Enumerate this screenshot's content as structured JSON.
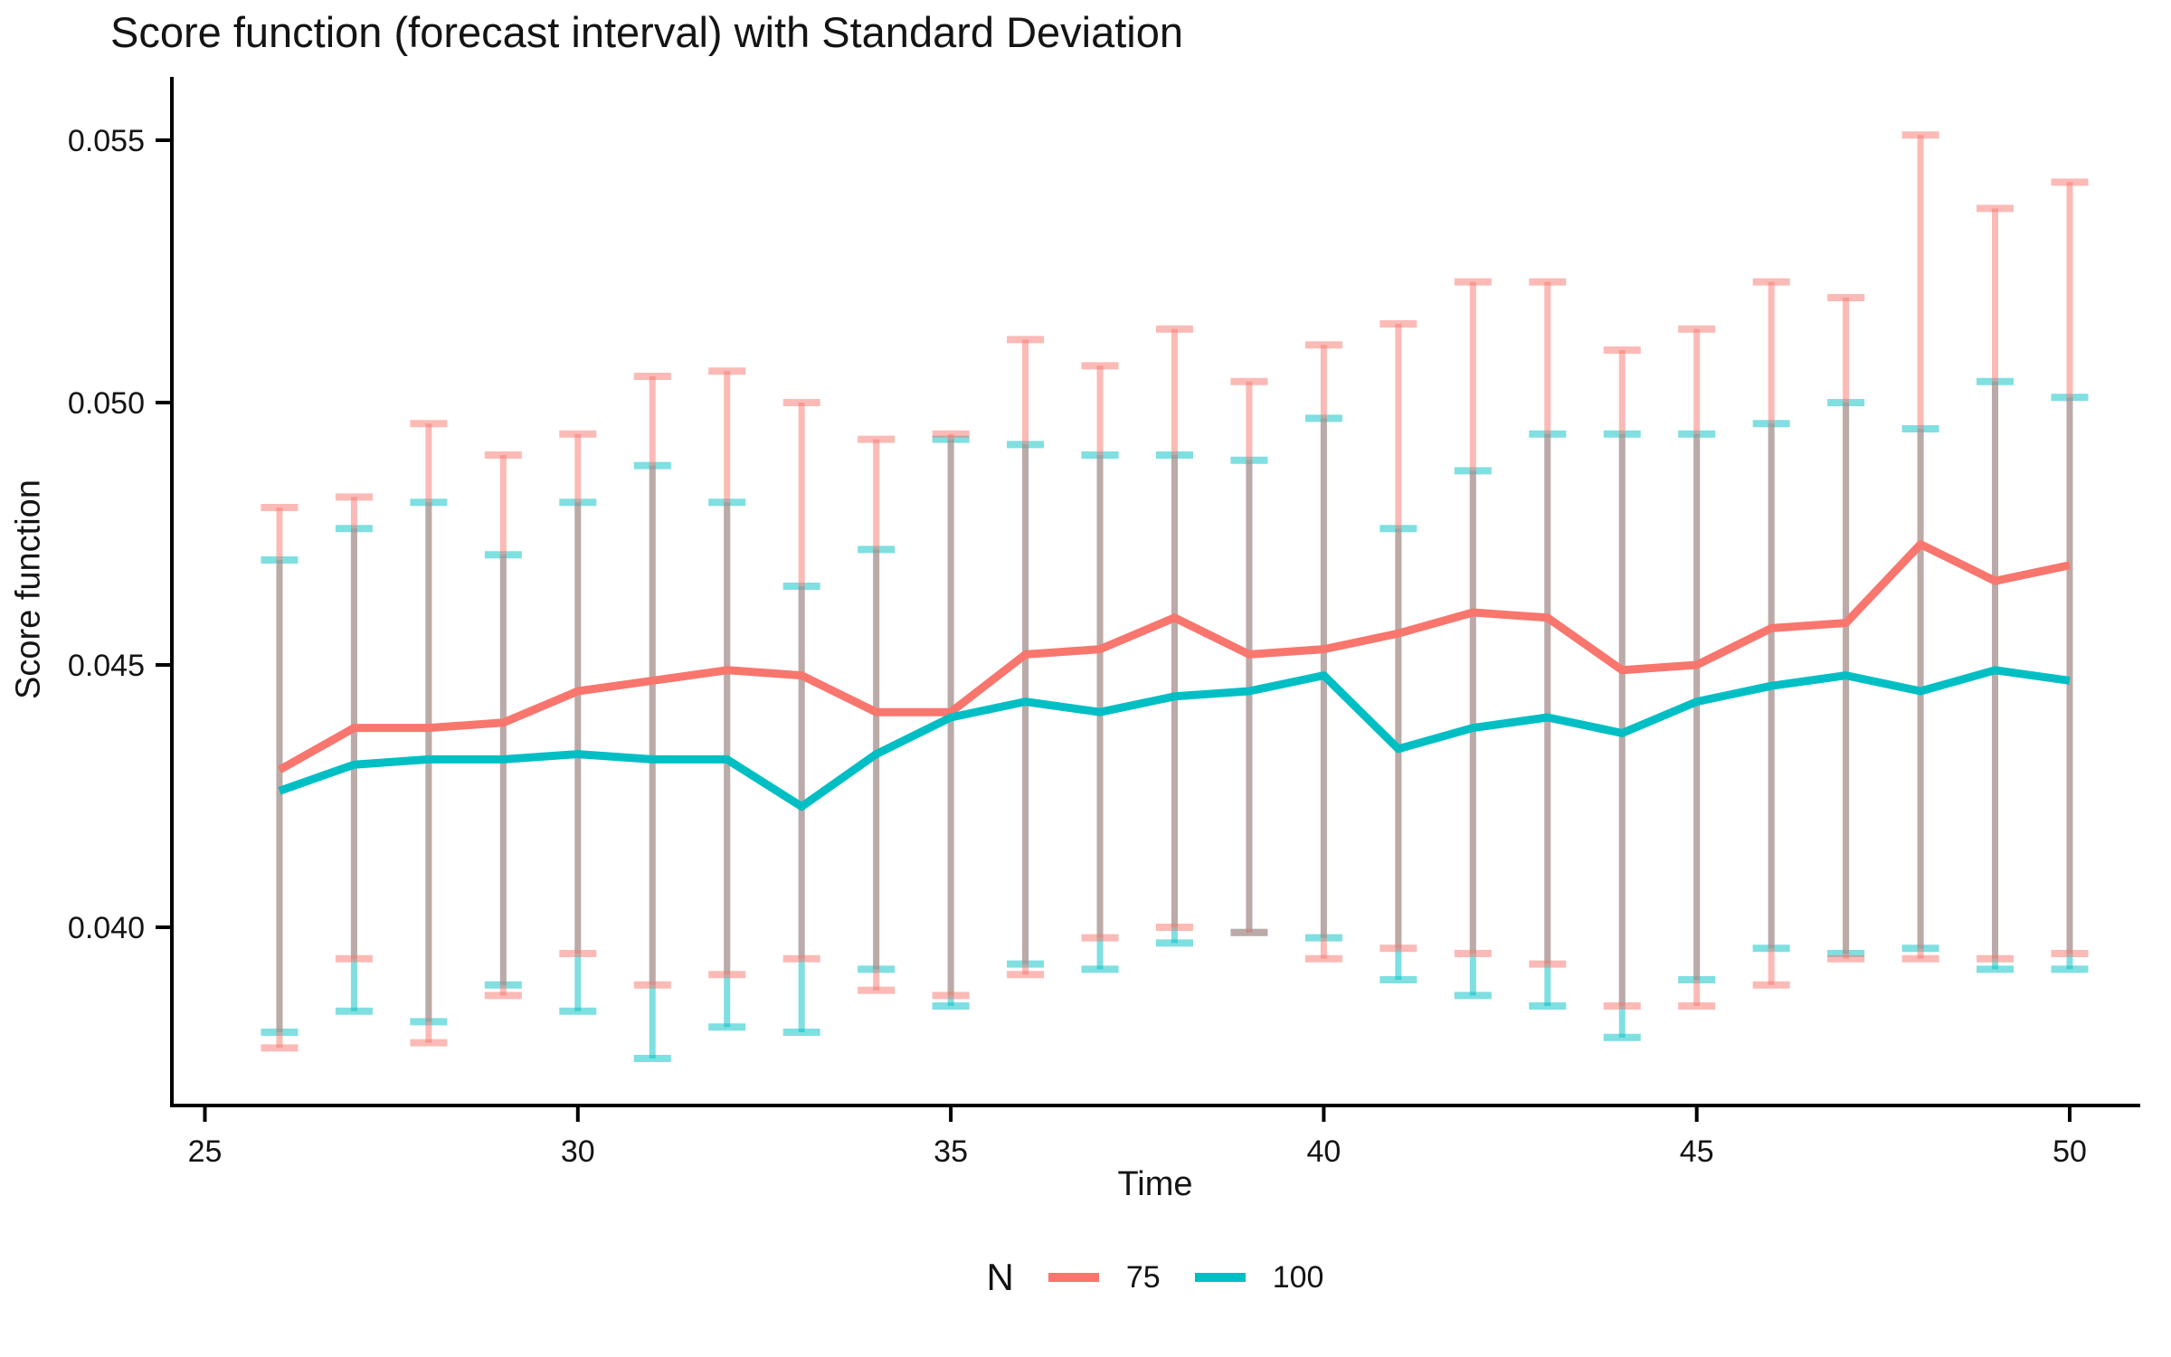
{
  "title": "Score function (forecast interval) with Standard Deviation",
  "x_axis": {
    "label": "Time",
    "tick_labels": [
      "25",
      "30",
      "35",
      "40",
      "45",
      "50"
    ],
    "tick_values": [
      25,
      30,
      35,
      40,
      45,
      50
    ]
  },
  "y_axis": {
    "label": "Score function",
    "tick_labels": [
      "0.055",
      "0.050",
      "0.045",
      "0.040"
    ],
    "tick_values": [
      0.055,
      0.05,
      0.045,
      0.04
    ]
  },
  "legend": {
    "title": "N",
    "items": [
      {
        "label": "75",
        "color": "#F8766D"
      },
      {
        "label": "100",
        "color": "#00BFC4"
      }
    ],
    "position": "bottom"
  },
  "colors": {
    "series_75": "#F8766D",
    "series_100": "#00BFC4",
    "axis": "#000000",
    "text": "#141414",
    "errorbar_alpha": 0.5
  },
  "chart_data": {
    "type": "line",
    "title": "Score function (forecast interval) with Standard Deviation",
    "xlabel": "Time",
    "ylabel": "Score function",
    "xlim": [
      24.55,
      50.95
    ],
    "ylim": [
      0.0366,
      0.0562
    ],
    "grid": false,
    "error_bars": "standard deviation, cap width 0.5 time units",
    "x": [
      26,
      27,
      28,
      29,
      30,
      31,
      32,
      33,
      34,
      35,
      36,
      37,
      38,
      39,
      40,
      41,
      42,
      43,
      44,
      45,
      46,
      47,
      48,
      49,
      50
    ],
    "series": [
      {
        "name": "75",
        "color": "#F8766D",
        "mean": [
          0.043,
          0.0438,
          0.0438,
          0.0439,
          0.0445,
          0.0447,
          0.0449,
          0.0448,
          0.0441,
          0.0441,
          0.0452,
          0.0453,
          0.0459,
          0.0452,
          0.0453,
          0.0456,
          0.046,
          0.0459,
          0.0449,
          0.045,
          0.0457,
          0.0458,
          0.0473,
          0.0466,
          0.0469
        ],
        "upper": [
          0.048,
          0.0482,
          0.0496,
          0.049,
          0.0494,
          0.0505,
          0.0506,
          0.05,
          0.0493,
          0.0494,
          0.0512,
          0.0507,
          0.0514,
          0.0504,
          0.0511,
          0.0515,
          0.0523,
          0.0523,
          0.051,
          0.0514,
          0.0523,
          0.052,
          0.0551,
          0.0537,
          0.0542
        ],
        "lower": [
          0.0377,
          0.0394,
          0.0378,
          0.0387,
          0.0395,
          0.0389,
          0.0391,
          0.0394,
          0.0388,
          0.0387,
          0.0391,
          0.0398,
          0.04,
          0.0399,
          0.0394,
          0.0396,
          0.0395,
          0.0393,
          0.0385,
          0.0385,
          0.0389,
          0.0394,
          0.0394,
          0.0394,
          0.0395
        ]
      },
      {
        "name": "100",
        "color": "#00BFC4",
        "mean": [
          0.0426,
          0.0431,
          0.0432,
          0.0432,
          0.0433,
          0.0432,
          0.0432,
          0.0423,
          0.0433,
          0.044,
          0.0443,
          0.0441,
          0.0444,
          0.0445,
          0.0448,
          0.0434,
          0.0438,
          0.044,
          0.0437,
          0.0443,
          0.0446,
          0.0448,
          0.0445,
          0.0449,
          0.0447
        ],
        "upper": [
          0.047,
          0.0476,
          0.0481,
          0.0471,
          0.0481,
          0.0488,
          0.0481,
          0.0465,
          0.0472,
          0.0493,
          0.0492,
          0.049,
          0.049,
          0.0489,
          0.0497,
          0.0476,
          0.0487,
          0.0494,
          0.0494,
          0.0494,
          0.0496,
          0.05,
          0.0495,
          0.0504,
          0.0501
        ],
        "lower": [
          0.038,
          0.0384,
          0.0382,
          0.0389,
          0.0384,
          0.0375,
          0.0381,
          0.038,
          0.0392,
          0.0385,
          0.0393,
          0.0392,
          0.0397,
          0.0399,
          0.0398,
          0.039,
          0.0387,
          0.0385,
          0.0379,
          0.039,
          0.0396,
          0.0395,
          0.0396,
          0.0392,
          0.0392
        ]
      }
    ]
  }
}
